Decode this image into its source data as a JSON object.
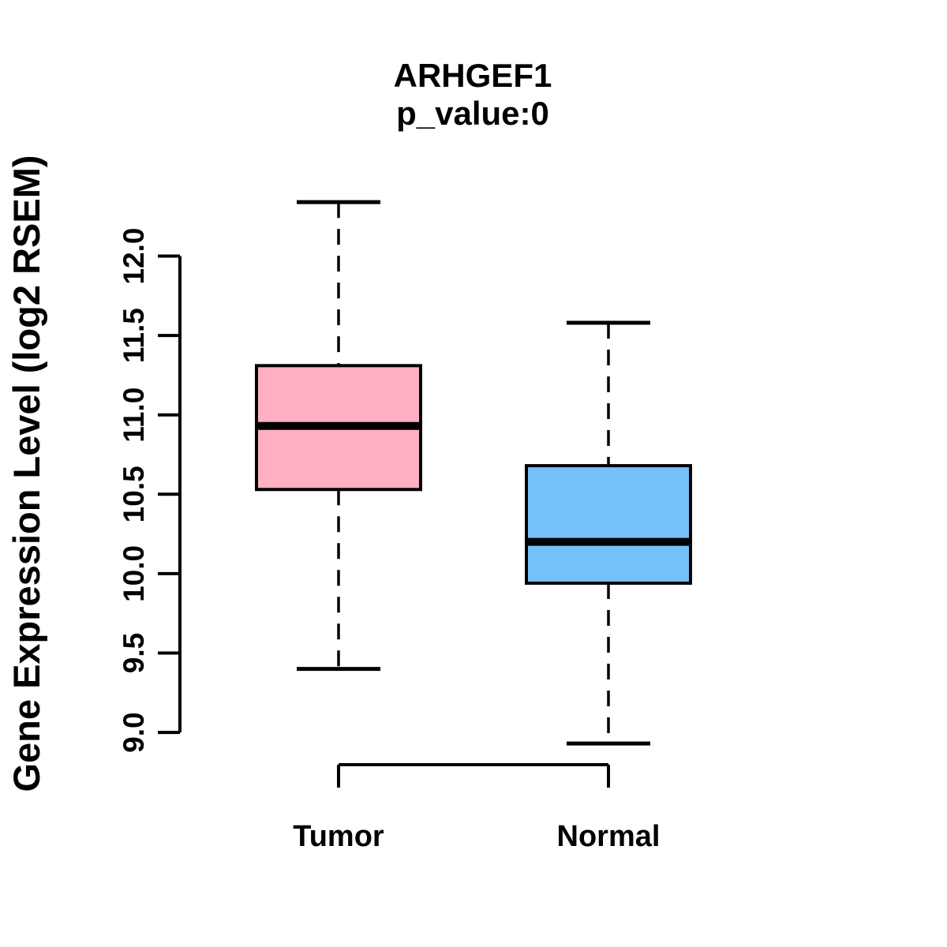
{
  "chart_data": {
    "type": "boxplot",
    "title": "ARHGEF1",
    "subtitle": "p_value:0",
    "ylabel": "Gene Expression Level (log2 RSEM)",
    "xlabel": "",
    "categories": [
      "Tumor",
      "Normal"
    ],
    "ytick_labels": [
      "9.0",
      "9.5",
      "10.0",
      "10.5",
      "11.0",
      "11.5",
      "12.0"
    ],
    "ylim": [
      8.8,
      12.5
    ],
    "grid": false,
    "legend": "none",
    "background_color": "#ffffff",
    "stroke_color": "#000000",
    "series": [
      {
        "name": "Tumor",
        "fill_color": "#FFB0C2",
        "stats": {
          "lower_whisker": 9.4,
          "q1": 10.53,
          "median": 10.93,
          "q3": 11.31,
          "upper_whisker": 12.34
        }
      },
      {
        "name": "Normal",
        "fill_color": "#74C0F8",
        "stats": {
          "lower_whisker": 8.93,
          "q1": 9.94,
          "median": 10.2,
          "q3": 10.68,
          "upper_whisker": 11.58
        }
      }
    ]
  }
}
